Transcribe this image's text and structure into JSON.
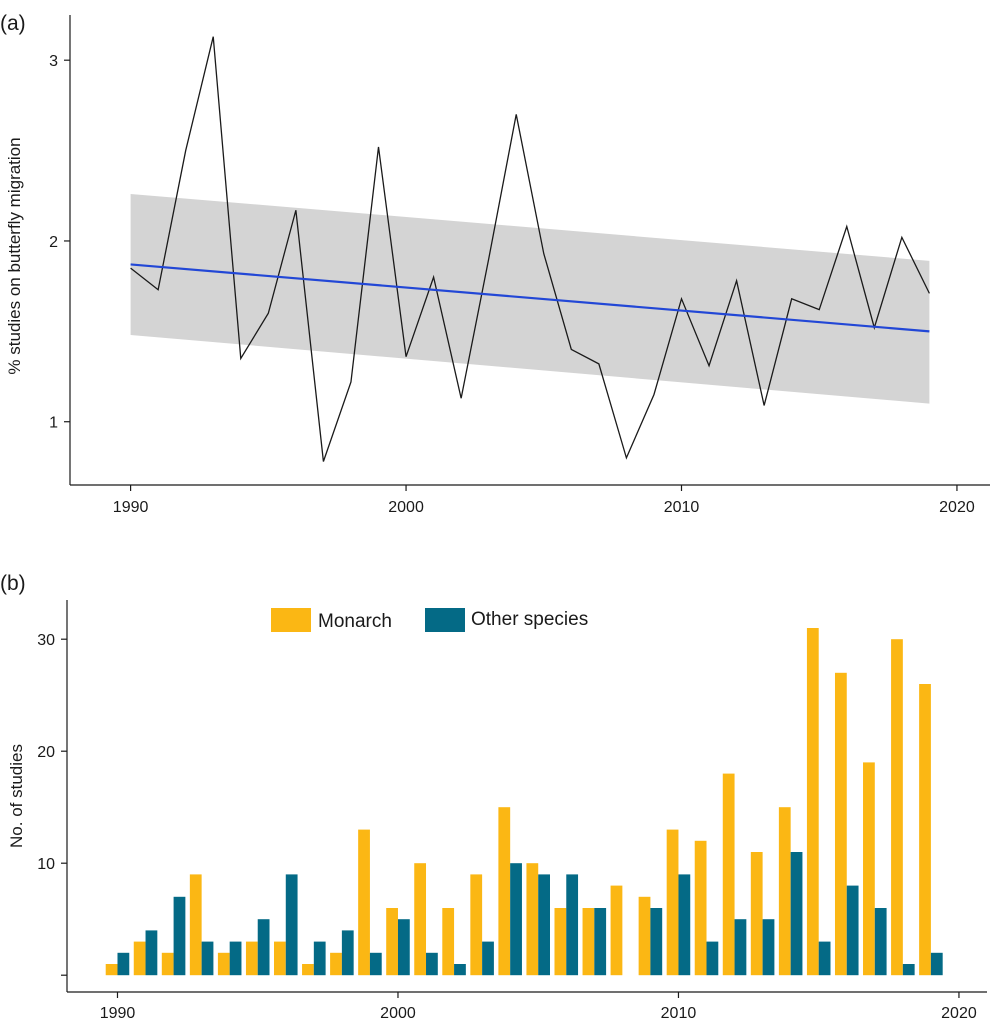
{
  "chart_data": [
    {
      "panel_label": "(a)",
      "type": "line",
      "title": "",
      "xlabel": "",
      "ylabel": "% studies on butterfly migration",
      "xlim": [
        1987.8,
        2021.2
      ],
      "ylim": [
        0.65,
        3.25
      ],
      "x_ticks": [
        1990,
        2000,
        2010,
        2020
      ],
      "y_ticks": [
        1,
        2,
        3
      ],
      "grid": false,
      "series": [
        {
          "x": [
            1990,
            1991,
            1992,
            1993,
            1994,
            1995,
            1996,
            1997,
            1998,
            1999,
            2000,
            2001,
            2002,
            2003,
            2004,
            2005,
            2006,
            2007,
            2008,
            2009,
            2010,
            2011,
            2012,
            2013,
            2014,
            2015,
            2016,
            2017,
            2018,
            2019
          ],
          "values": [
            1.85,
            1.73,
            2.5,
            3.13,
            1.35,
            1.6,
            2.17,
            0.78,
            1.22,
            2.52,
            1.36,
            1.8,
            1.13,
            1.9,
            2.7,
            1.93,
            1.4,
            1.32,
            0.8,
            1.15,
            1.68,
            1.31,
            1.78,
            1.09,
            1.68,
            1.62,
            2.08,
            1.52,
            2.02,
            1.71
          ],
          "color": "#1a1a1a"
        }
      ],
      "trend": {
        "x": [
          1990,
          2019
        ],
        "values": [
          1.87,
          1.5
        ],
        "ci_lower": [
          1.48,
          1.1
        ],
        "ci_upper": [
          2.26,
          1.89
        ],
        "color": "#2247d6",
        "band_color": "#d4d4d4"
      }
    },
    {
      "panel_label": "(b)",
      "type": "bar",
      "title": "",
      "xlabel": "",
      "ylabel": "No. of studies",
      "xlim": [
        1988.2,
        2021.0
      ],
      "ylim": [
        -1.5,
        33.5
      ],
      "x_ticks": [
        1990,
        2000,
        2010,
        2020
      ],
      "y_ticks": [
        10,
        20,
        30
      ],
      "grid": false,
      "legend_position": "top-left",
      "categories": [
        1990,
        1991,
        1992,
        1993,
        1994,
        1995,
        1996,
        1997,
        1998,
        1999,
        2000,
        2001,
        2002,
        2003,
        2004,
        2005,
        2006,
        2007,
        2008,
        2009,
        2010,
        2011,
        2012,
        2013,
        2014,
        2015,
        2016,
        2017,
        2018,
        2019
      ],
      "series": [
        {
          "name": "Monarch",
          "color": "#fbb714",
          "values": [
            1,
            3,
            2,
            9,
            2,
            3,
            3,
            1,
            2,
            13,
            6,
            10,
            6,
            9,
            15,
            10,
            6,
            6,
            8,
            7,
            13,
            12,
            18,
            11,
            15,
            31,
            27,
            19,
            30,
            26
          ]
        },
        {
          "name": "Other species",
          "color": "#046a86",
          "values": [
            2,
            4,
            7,
            3,
            3,
            5,
            9,
            3,
            4,
            2,
            5,
            2,
            1,
            3,
            10,
            9,
            9,
            6,
            0,
            6,
            9,
            3,
            5,
            5,
            11,
            3,
            8,
            6,
            1,
            2
          ]
        }
      ]
    }
  ]
}
